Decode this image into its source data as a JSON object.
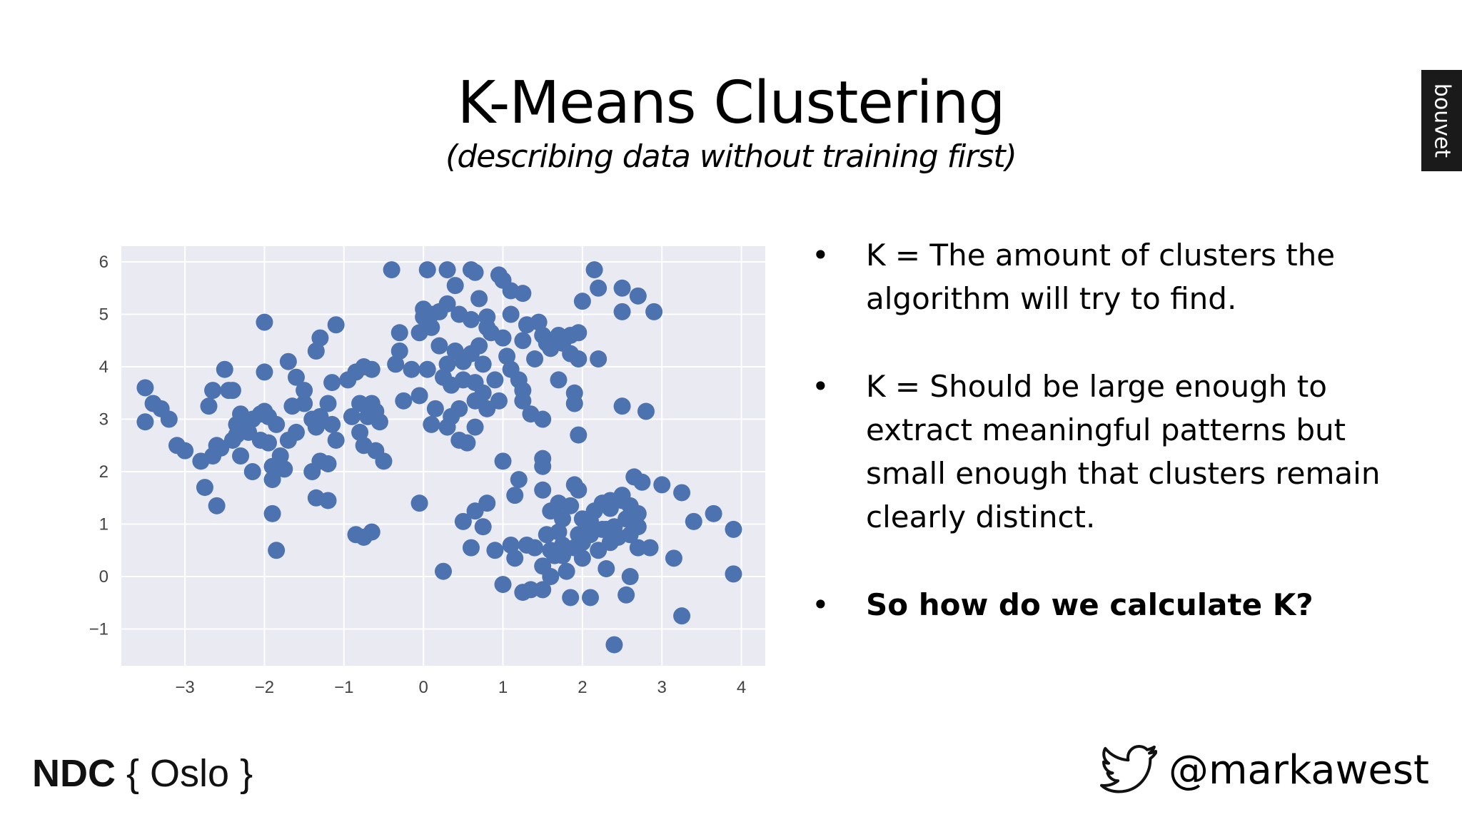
{
  "slide": {
    "title": "K-Means Clustering",
    "subtitle": "(describing data without training first)",
    "brand_tab": "bouvet",
    "bullets": [
      {
        "text": "K = The amount of clusters the algorithm will try to find.",
        "bold": false
      },
      {
        "text": "K = Should be large enough to extract meaningful patterns but small enough that clusters remain clearly distinct.",
        "bold": false
      },
      {
        "text": "So how do we calculate K?",
        "bold": true
      }
    ],
    "bullet_glyph": "•",
    "footer": {
      "logo_ndc": "NDC",
      "logo_rest": "{ Oslo }",
      "twitter_handle": "@markawest",
      "twitter_icon": "twitter-bird-icon"
    }
  },
  "colors": {
    "point": "#4c72b0",
    "plot_background": "#eaeaf2",
    "grid": "#ffffff",
    "tick_text": "#444444",
    "brand_tab": "#1a1a1a"
  },
  "chart_data": {
    "type": "scatter",
    "title": "",
    "xlabel": "",
    "ylabel": "",
    "xlim": [
      -3.8,
      4.3
    ],
    "ylim": [
      -1.7,
      6.3
    ],
    "xticks": [
      -3,
      -2,
      -1,
      0,
      1,
      2,
      3,
      4
    ],
    "yticks": [
      -1,
      0,
      1,
      2,
      3,
      4,
      5,
      6
    ],
    "grid": true,
    "legend": "none",
    "series": [
      {
        "points": [
          [
            -3.5,
            3.6
          ],
          [
            -3.4,
            3.3
          ],
          [
            -3.3,
            3.2
          ],
          [
            -3.2,
            3.0
          ],
          [
            -3.5,
            2.95
          ],
          [
            -3.1,
            2.5
          ],
          [
            -3.0,
            2.4
          ],
          [
            -2.8,
            2.2
          ],
          [
            -2.75,
            1.7
          ],
          [
            -2.6,
            1.35
          ],
          [
            -2.7,
            3.25
          ],
          [
            -2.65,
            3.55
          ],
          [
            -2.45,
            3.55
          ],
          [
            -2.5,
            3.95
          ],
          [
            -2.4,
            3.55
          ],
          [
            -2.3,
            3.1
          ],
          [
            -2.35,
            2.9
          ],
          [
            -2.35,
            2.7
          ],
          [
            -2.25,
            2.95
          ],
          [
            -2.15,
            3.0
          ],
          [
            -2.2,
            2.75
          ],
          [
            -2.05,
            3.1
          ],
          [
            -1.95,
            3.05
          ],
          [
            -2.3,
            2.3
          ],
          [
            -2.15,
            2.0
          ],
          [
            -2.4,
            2.6
          ],
          [
            -2.6,
            2.5
          ],
          [
            -2.65,
            2.3
          ],
          [
            -2.55,
            2.45
          ],
          [
            -2.05,
            2.6
          ],
          [
            -1.95,
            2.55
          ],
          [
            -1.9,
            2.1
          ],
          [
            -1.8,
            2.3
          ],
          [
            -1.9,
            1.85
          ],
          [
            -1.75,
            2.05
          ],
          [
            -1.85,
            2.9
          ],
          [
            -1.7,
            2.6
          ],
          [
            -1.6,
            2.75
          ],
          [
            -1.65,
            3.25
          ],
          [
            -1.5,
            3.3
          ],
          [
            -1.4,
            3.0
          ],
          [
            -1.35,
            2.85
          ],
          [
            -1.3,
            3.05
          ],
          [
            -1.2,
            3.3
          ],
          [
            -1.15,
            2.9
          ],
          [
            -1.3,
            2.2
          ],
          [
            -1.4,
            2.0
          ],
          [
            -1.2,
            2.15
          ],
          [
            -1.35,
            1.5
          ],
          [
            -1.2,
            1.45
          ],
          [
            -1.9,
            1.2
          ],
          [
            -1.85,
            0.5
          ],
          [
            -2.0,
            3.9
          ],
          [
            -2.0,
            4.85
          ],
          [
            -1.7,
            4.1
          ],
          [
            -1.6,
            3.8
          ],
          [
            -1.5,
            3.55
          ],
          [
            -1.35,
            4.3
          ],
          [
            -1.3,
            4.55
          ],
          [
            -1.1,
            4.8
          ],
          [
            -1.15,
            3.7
          ],
          [
            -0.95,
            3.75
          ],
          [
            -0.85,
            3.9
          ],
          [
            -0.75,
            4.0
          ],
          [
            -0.65,
            3.95
          ],
          [
            -0.8,
            3.3
          ],
          [
            -0.65,
            3.3
          ],
          [
            -0.9,
            3.05
          ],
          [
            -0.7,
            3.05
          ],
          [
            -0.55,
            2.95
          ],
          [
            -0.8,
            2.75
          ],
          [
            -0.75,
            2.5
          ],
          [
            -0.6,
            2.4
          ],
          [
            -0.5,
            2.2
          ],
          [
            -0.6,
            3.15
          ],
          [
            -1.1,
            2.6
          ],
          [
            -0.85,
            0.8
          ],
          [
            -0.75,
            0.75
          ],
          [
            -0.65,
            0.85
          ],
          [
            -2.0,
            3.15
          ]
        ]
      },
      {
        "points": [
          [
            -0.4,
            5.85
          ],
          [
            0.05,
            5.85
          ],
          [
            0.3,
            5.85
          ],
          [
            0.6,
            5.85
          ],
          [
            0.65,
            5.8
          ],
          [
            0.4,
            5.55
          ],
          [
            0.95,
            5.75
          ],
          [
            1.0,
            5.65
          ],
          [
            1.1,
            5.45
          ],
          [
            1.25,
            5.4
          ],
          [
            0.7,
            5.3
          ],
          [
            0.0,
            5.1
          ],
          [
            0.0,
            4.95
          ],
          [
            0.1,
            5.0
          ],
          [
            0.2,
            5.05
          ],
          [
            0.3,
            5.2
          ],
          [
            0.45,
            5.0
          ],
          [
            0.6,
            4.9
          ],
          [
            0.8,
            4.95
          ],
          [
            1.1,
            5.0
          ],
          [
            1.3,
            4.8
          ],
          [
            1.45,
            4.85
          ],
          [
            1.5,
            4.6
          ],
          [
            1.7,
            4.6
          ],
          [
            1.75,
            4.45
          ],
          [
            1.85,
            4.6
          ],
          [
            1.95,
            4.65
          ],
          [
            1.6,
            4.35
          ],
          [
            1.85,
            4.25
          ],
          [
            1.95,
            4.15
          ],
          [
            2.2,
            4.15
          ],
          [
            1.4,
            4.15
          ],
          [
            1.55,
            4.45
          ],
          [
            1.25,
            4.5
          ],
          [
            1.0,
            4.55
          ],
          [
            0.85,
            4.65
          ],
          [
            0.7,
            4.4
          ],
          [
            0.6,
            4.25
          ],
          [
            0.5,
            4.1
          ],
          [
            0.4,
            4.3
          ],
          [
            0.3,
            4.05
          ],
          [
            0.2,
            4.4
          ],
          [
            0.1,
            4.75
          ],
          [
            -0.05,
            4.65
          ],
          [
            -0.3,
            4.65
          ],
          [
            -0.3,
            4.3
          ],
          [
            -0.35,
            4.05
          ],
          [
            -0.15,
            3.95
          ],
          [
            0.05,
            3.95
          ],
          [
            0.25,
            3.8
          ],
          [
            0.35,
            3.65
          ],
          [
            0.5,
            3.75
          ],
          [
            0.65,
            3.7
          ],
          [
            0.75,
            3.5
          ],
          [
            0.9,
            3.75
          ],
          [
            1.1,
            3.95
          ],
          [
            1.2,
            3.75
          ],
          [
            1.25,
            3.55
          ],
          [
            0.95,
            3.35
          ],
          [
            0.8,
            3.2
          ],
          [
            0.65,
            3.35
          ],
          [
            0.45,
            3.2
          ],
          [
            0.35,
            3.05
          ],
          [
            0.15,
            3.2
          ],
          [
            0.1,
            2.9
          ],
          [
            0.3,
            2.85
          ],
          [
            0.45,
            2.6
          ],
          [
            0.55,
            2.55
          ],
          [
            0.65,
            2.85
          ],
          [
            -0.25,
            3.35
          ],
          [
            -0.05,
            3.45
          ],
          [
            1.25,
            3.35
          ],
          [
            1.35,
            3.1
          ],
          [
            1.5,
            3.0
          ],
          [
            1.7,
            3.75
          ],
          [
            1.9,
            3.5
          ],
          [
            1.9,
            3.3
          ],
          [
            1.95,
            2.7
          ],
          [
            2.15,
            5.85
          ],
          [
            2.2,
            5.5
          ],
          [
            2.5,
            5.5
          ],
          [
            2.7,
            5.35
          ],
          [
            2.9,
            5.05
          ],
          [
            2.5,
            5.05
          ],
          [
            2.0,
            5.25
          ],
          [
            2.5,
            3.25
          ],
          [
            2.8,
            3.15
          ],
          [
            0.8,
            4.75
          ],
          [
            1.05,
            4.2
          ],
          [
            0.75,
            4.05
          ]
        ]
      },
      {
        "points": [
          [
            1.0,
            2.2
          ],
          [
            1.5,
            2.25
          ],
          [
            1.5,
            2.1
          ],
          [
            1.2,
            1.85
          ],
          [
            1.5,
            1.65
          ],
          [
            1.15,
            1.55
          ],
          [
            0.8,
            1.4
          ],
          [
            0.65,
            1.25
          ],
          [
            0.5,
            1.05
          ],
          [
            0.75,
            0.95
          ],
          [
            -0.05,
            1.4
          ],
          [
            0.25,
            0.1
          ],
          [
            0.6,
            0.55
          ],
          [
            0.9,
            0.5
          ],
          [
            1.1,
            0.6
          ],
          [
            1.15,
            0.35
          ],
          [
            1.3,
            0.6
          ],
          [
            1.4,
            0.55
          ],
          [
            1.6,
            0.5
          ],
          [
            1.55,
            0.8
          ],
          [
            1.7,
            0.85
          ],
          [
            1.75,
            1.1
          ],
          [
            1.6,
            1.25
          ],
          [
            1.7,
            1.4
          ],
          [
            1.85,
            1.35
          ],
          [
            2.0,
            1.1
          ],
          [
            2.1,
            1.05
          ],
          [
            2.15,
            1.25
          ],
          [
            2.25,
            1.4
          ],
          [
            2.35,
            1.45
          ],
          [
            2.5,
            1.45
          ],
          [
            2.6,
            1.35
          ],
          [
            2.7,
            1.2
          ],
          [
            2.55,
            1.1
          ],
          [
            2.4,
            0.95
          ],
          [
            2.25,
            0.9
          ],
          [
            2.1,
            0.8
          ],
          [
            2.0,
            0.65
          ],
          [
            1.9,
            0.55
          ],
          [
            1.75,
            0.6
          ],
          [
            1.65,
            0.4
          ],
          [
            1.5,
            0.2
          ],
          [
            1.6,
            0.0
          ],
          [
            1.8,
            0.1
          ],
          [
            2.0,
            0.35
          ],
          [
            2.2,
            0.5
          ],
          [
            2.35,
            0.65
          ],
          [
            2.45,
            0.75
          ],
          [
            2.6,
            0.8
          ],
          [
            2.7,
            0.55
          ],
          [
            2.85,
            0.55
          ],
          [
            2.6,
            0.0
          ],
          [
            2.55,
            -0.35
          ],
          [
            2.3,
            0.15
          ],
          [
            2.1,
            -0.4
          ],
          [
            1.85,
            -0.4
          ],
          [
            1.75,
            0.4
          ],
          [
            1.5,
            -0.25
          ],
          [
            1.35,
            -0.25
          ],
          [
            1.25,
            -0.3
          ],
          [
            1.0,
            -0.15
          ],
          [
            1.9,
            1.75
          ],
          [
            1.95,
            1.65
          ],
          [
            2.35,
            1.3
          ],
          [
            2.65,
            1.9
          ],
          [
            2.75,
            1.8
          ],
          [
            2.5,
            1.55
          ],
          [
            2.3,
            0.9
          ],
          [
            2.05,
            1.0
          ],
          [
            1.95,
            0.8
          ],
          [
            3.0,
            1.75
          ],
          [
            3.25,
            1.6
          ],
          [
            3.4,
            1.05
          ],
          [
            3.65,
            1.2
          ],
          [
            3.9,
            0.9
          ],
          [
            3.9,
            0.05
          ],
          [
            3.15,
            0.35
          ],
          [
            3.25,
            -0.75
          ],
          [
            2.4,
            -1.3
          ],
          [
            2.7,
            0.95
          ]
        ]
      }
    ]
  }
}
